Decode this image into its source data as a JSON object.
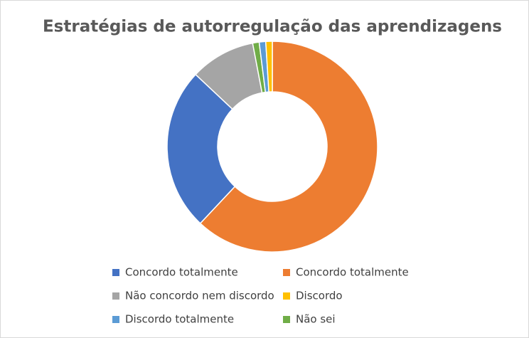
{
  "chart_data": {
    "type": "donut",
    "title": "Estratégias de autorregulação das aprendizagens",
    "series": [
      {
        "name": "Concordo totalmente",
        "color": "#4472c4",
        "value": 25
      },
      {
        "name": "Concordo totalmente",
        "color": "#ed7d31",
        "value": 62
      },
      {
        "name": "Não concordo nem discordo",
        "color": "#a5a5a5",
        "value": 10
      },
      {
        "name": "Discordo",
        "color": "#ffc000",
        "value": 1
      },
      {
        "name": "Discordo totalmente",
        "color": "#5b9bd5",
        "value": 1
      },
      {
        "name": "Não sei",
        "color": "#70ad47",
        "value": 1
      }
    ]
  }
}
